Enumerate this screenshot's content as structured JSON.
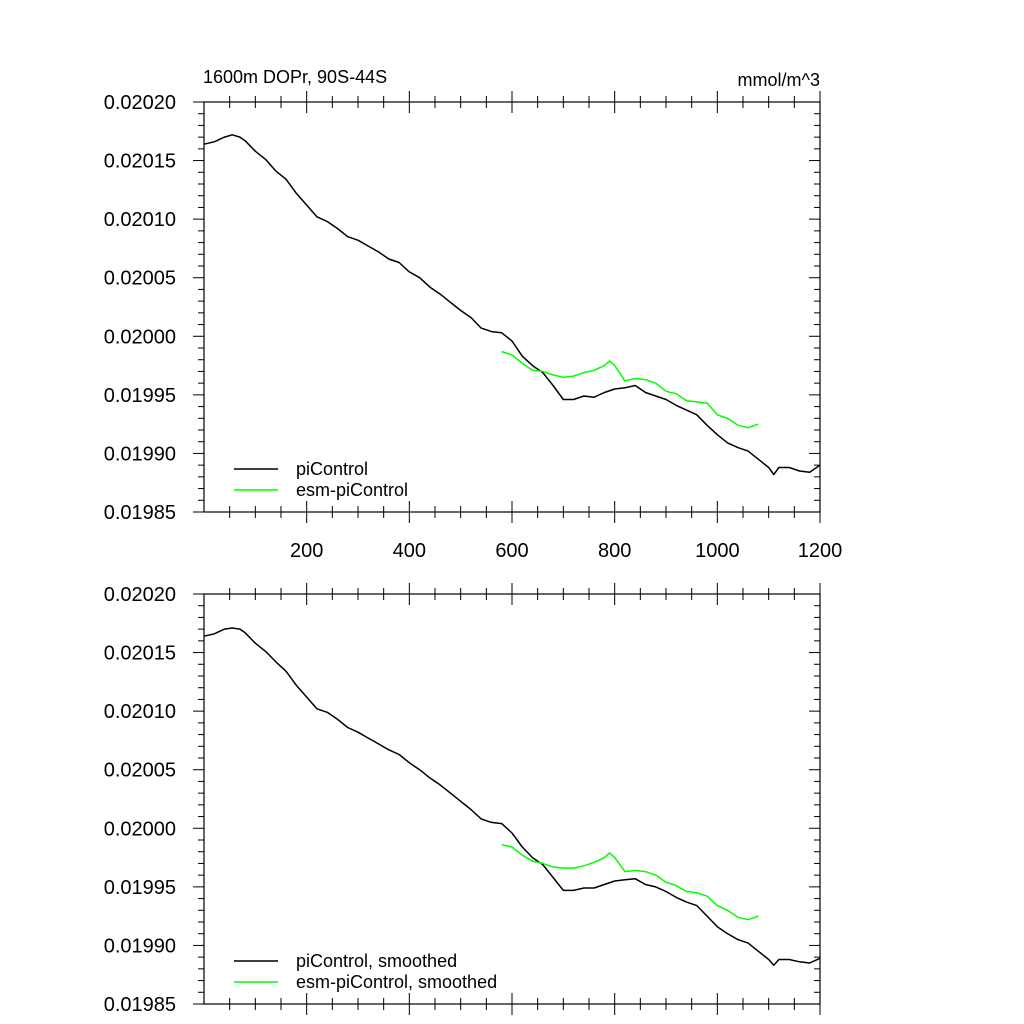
{
  "chart_data": [
    {
      "type": "line",
      "title_left": "1600m DOPr, 90S-44S",
      "title_right": "mmol/m^3",
      "xlim": [
        0,
        1200
      ],
      "ylim": [
        0.01985,
        0.0202
      ],
      "xticks": [
        200,
        400,
        600,
        800,
        1000,
        1200
      ],
      "xtick_labels": [
        "200",
        "400",
        "600",
        "800",
        "1000",
        "1200"
      ],
      "yticks": [
        0.01985,
        0.0199,
        0.01995,
        0.02,
        0.02005,
        0.0201,
        0.02015,
        0.0202
      ],
      "ytick_labels": [
        "0.01985",
        "0.01990",
        "0.01995",
        "0.02000",
        "0.02005",
        "0.02010",
        "0.02015",
        "0.02020"
      ],
      "legend_position": "bottom-left",
      "series": [
        {
          "name": "piControl",
          "color": "#000000",
          "x": [
            0,
            20,
            40,
            55,
            70,
            80,
            100,
            120,
            140,
            160,
            180,
            200,
            220,
            240,
            260,
            280,
            300,
            320,
            340,
            360,
            380,
            400,
            420,
            440,
            460,
            480,
            500,
            520,
            540,
            560,
            580,
            600,
            620,
            640,
            660,
            680,
            700,
            720,
            740,
            760,
            780,
            800,
            820,
            840,
            860,
            880,
            900,
            920,
            940,
            960,
            980,
            1000,
            1020,
            1040,
            1060,
            1080,
            1100,
            1110,
            1120,
            1140,
            1160,
            1180,
            1200
          ],
          "y": [
            0.020164,
            0.020166,
            0.02017,
            0.020172,
            0.02017,
            0.020167,
            0.020158,
            0.020151,
            0.020141,
            0.020134,
            0.020122,
            0.020112,
            0.020102,
            0.020098,
            0.020092,
            0.020085,
            0.020082,
            0.020077,
            0.020072,
            0.020066,
            0.020063,
            0.020055,
            0.02005,
            0.020042,
            0.020036,
            0.020029,
            0.020022,
            0.020016,
            0.020007,
            0.020004,
            0.020003,
            0.019996,
            0.019983,
            0.019975,
            0.019969,
            0.019958,
            0.019946,
            0.019946,
            0.019949,
            0.019948,
            0.019952,
            0.019955,
            0.019956,
            0.019958,
            0.019952,
            0.019949,
            0.019946,
            0.019941,
            0.019937,
            0.019933,
            0.019924,
            0.019916,
            0.019909,
            0.019905,
            0.019902,
            0.019895,
            0.019888,
            0.019882,
            0.019888,
            0.019888,
            0.019885,
            0.019884,
            0.01989
          ]
        },
        {
          "name": "esm-piControl",
          "color": "#00ff00",
          "x": [
            580,
            600,
            620,
            640,
            660,
            680,
            700,
            720,
            740,
            760,
            780,
            790,
            800,
            820,
            840,
            860,
            880,
            900,
            920,
            940,
            960,
            980,
            1000,
            1020,
            1040,
            1060,
            1080
          ],
          "y": [
            0.019987,
            0.019984,
            0.019977,
            0.019971,
            0.01997,
            0.019967,
            0.019965,
            0.019966,
            0.019969,
            0.019971,
            0.019975,
            0.019979,
            0.019975,
            0.019962,
            0.019964,
            0.019963,
            0.01996,
            0.019953,
            0.019951,
            0.019945,
            0.019944,
            0.019943,
            0.019933,
            0.01993,
            0.019924,
            0.019922,
            0.019925
          ]
        }
      ]
    },
    {
      "type": "line",
      "xlim": [
        0,
        1200
      ],
      "ylim": [
        0.01985,
        0.0202
      ],
      "xticks": [
        200,
        400,
        600,
        800,
        1000,
        1200
      ],
      "yticks": [
        0.01985,
        0.0199,
        0.01995,
        0.02,
        0.02005,
        0.0201,
        0.02015,
        0.0202
      ],
      "ytick_labels": [
        "0.01985",
        "0.01990",
        "0.01995",
        "0.02000",
        "0.02005",
        "0.02010",
        "0.02015",
        "0.02020"
      ],
      "legend_position": "bottom-left",
      "series": [
        {
          "name": "piControl, smoothed",
          "color": "#000000",
          "x": [
            0,
            20,
            40,
            55,
            70,
            80,
            100,
            120,
            140,
            160,
            180,
            200,
            220,
            240,
            260,
            280,
            300,
            320,
            340,
            360,
            380,
            400,
            420,
            440,
            460,
            480,
            500,
            520,
            540,
            560,
            580,
            600,
            620,
            640,
            660,
            680,
            700,
            720,
            740,
            760,
            780,
            800,
            820,
            840,
            860,
            880,
            900,
            920,
            940,
            960,
            980,
            1000,
            1020,
            1040,
            1060,
            1080,
            1100,
            1110,
            1120,
            1140,
            1160,
            1180,
            1200
          ],
          "y": [
            0.020164,
            0.020166,
            0.02017,
            0.020171,
            0.02017,
            0.020167,
            0.020158,
            0.020151,
            0.020142,
            0.020134,
            0.020122,
            0.020112,
            0.020102,
            0.020099,
            0.020093,
            0.020086,
            0.020082,
            0.020077,
            0.020072,
            0.020067,
            0.020063,
            0.020056,
            0.02005,
            0.020043,
            0.020037,
            0.02003,
            0.020023,
            0.020016,
            0.020008,
            0.020005,
            0.020004,
            0.019996,
            0.019984,
            0.019975,
            0.019969,
            0.019958,
            0.019947,
            0.019947,
            0.019949,
            0.019949,
            0.019952,
            0.019955,
            0.019956,
            0.019957,
            0.019952,
            0.01995,
            0.019946,
            0.019941,
            0.019937,
            0.019934,
            0.019925,
            0.019916,
            0.01991,
            0.019905,
            0.019902,
            0.019895,
            0.019888,
            0.019883,
            0.019888,
            0.019888,
            0.019886,
            0.019885,
            0.019889
          ]
        },
        {
          "name": "esm-piControl, smoothed",
          "color": "#00ff00",
          "x": [
            580,
            600,
            620,
            640,
            660,
            680,
            700,
            720,
            740,
            760,
            780,
            790,
            800,
            820,
            840,
            860,
            880,
            900,
            920,
            940,
            960,
            980,
            1000,
            1020,
            1040,
            1060,
            1080
          ],
          "y": [
            0.019986,
            0.019984,
            0.019977,
            0.019972,
            0.01997,
            0.019967,
            0.019966,
            0.019966,
            0.019968,
            0.019971,
            0.019975,
            0.019979,
            0.019975,
            0.019963,
            0.019964,
            0.019963,
            0.01996,
            0.019954,
            0.019951,
            0.019946,
            0.019945,
            0.019942,
            0.019934,
            0.01993,
            0.019924,
            0.019922,
            0.019925
          ]
        }
      ]
    }
  ]
}
